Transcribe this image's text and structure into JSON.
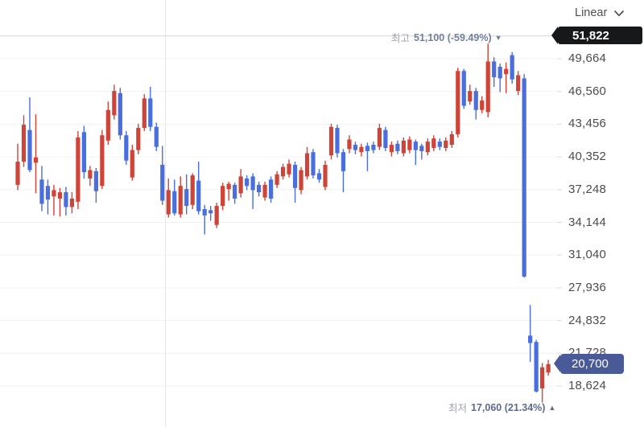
{
  "toolbar": {
    "scale_label": "Linear"
  },
  "y_axis": {
    "high_badge": "51,822",
    "current_badge": "20,700",
    "tick_labels": [
      "49,664",
      "46,560",
      "43,456",
      "40,352",
      "37,248",
      "34,144",
      "31,040",
      "27,936",
      "24,832",
      "21,728",
      "18,624"
    ]
  },
  "annotations": {
    "high": {
      "prefix": "최고",
      "value_text": "51,100 (-59.49%)",
      "arrow": "▼"
    },
    "low": {
      "prefix": "최저",
      "value_text": "17,060 (21.34%)",
      "arrow": "▲"
    }
  },
  "chart_data": {
    "type": "candlestick",
    "up_color": "#cf4439",
    "down_color": "#4a6edb",
    "grid": true,
    "axis_side": "right",
    "y_ticks": [
      49664,
      46560,
      43456,
      40352,
      37248,
      34144,
      31040,
      27936,
      24832,
      21728,
      18624
    ],
    "y_tick_labels": [
      "49,664",
      "46,560",
      "43,456",
      "40,352",
      "37,248",
      "34,144",
      "31,040",
      "27,936",
      "24,832",
      "21,728",
      "18,624"
    ],
    "high_line_price": 51822,
    "last_price": 20700,
    "high_marker": {
      "price": 51100,
      "change_pct": -59.49
    },
    "low_marker": {
      "price": 17060,
      "change_pct": 21.34
    },
    "candles": [
      [
        37700,
        41600,
        37200,
        39900
      ],
      [
        39900,
        44300,
        39400,
        43400
      ],
      [
        42900,
        46000,
        38900,
        39100
      ],
      [
        39800,
        44400,
        36900,
        40300
      ],
      [
        38200,
        39500,
        35200,
        35900
      ],
      [
        37600,
        38200,
        34900,
        36300
      ],
      [
        36600,
        37700,
        34800,
        37200
      ],
      [
        36400,
        37400,
        34700,
        37000
      ],
      [
        37000,
        37500,
        34800,
        35600
      ],
      [
        35600,
        37000,
        35000,
        36400
      ],
      [
        36100,
        42800,
        35400,
        42200
      ],
      [
        42700,
        43300,
        38300,
        38900
      ],
      [
        38300,
        39500,
        37600,
        39100
      ],
      [
        39000,
        39300,
        36000,
        37100
      ],
      [
        37600,
        42900,
        37300,
        42400
      ],
      [
        41900,
        45600,
        41500,
        44800
      ],
      [
        44300,
        47200,
        43900,
        46600
      ],
      [
        46400,
        46900,
        42000,
        42400
      ],
      [
        42400,
        42800,
        39600,
        40000
      ],
      [
        38400,
        41500,
        38100,
        41000
      ],
      [
        41000,
        43500,
        40600,
        43100
      ],
      [
        43100,
        46300,
        42800,
        45900
      ],
      [
        45900,
        47000,
        42800,
        43200
      ],
      [
        43200,
        43600,
        40900,
        41300
      ],
      [
        39600,
        41400,
        35800,
        36200
      ],
      [
        34900,
        38300,
        34600,
        37200
      ],
      [
        37100,
        38200,
        34800,
        35000
      ],
      [
        34900,
        38500,
        34600,
        37600
      ],
      [
        37300,
        38700,
        34900,
        35700
      ],
      [
        35800,
        38800,
        35400,
        38600
      ],
      [
        38100,
        39900,
        34900,
        35200
      ],
      [
        35400,
        35800,
        33000,
        34800
      ],
      [
        35300,
        35700,
        34300,
        35000
      ],
      [
        33900,
        36000,
        33600,
        35700
      ],
      [
        35700,
        37900,
        35300,
        37600
      ],
      [
        37300,
        38000,
        36200,
        37800
      ],
      [
        37700,
        37900,
        35900,
        36400
      ],
      [
        36900,
        39200,
        36500,
        38500
      ],
      [
        38300,
        38600,
        37200,
        37600
      ],
      [
        38500,
        38800,
        35400,
        37200
      ],
      [
        37700,
        38000,
        36600,
        37000
      ],
      [
        36500,
        38000,
        36200,
        37700
      ],
      [
        38200,
        38500,
        36000,
        36400
      ],
      [
        37700,
        39000,
        37400,
        38700
      ],
      [
        38500,
        39700,
        38200,
        39400
      ],
      [
        38700,
        40100,
        38400,
        39700
      ],
      [
        39600,
        39900,
        36000,
        37400
      ],
      [
        37200,
        39400,
        36800,
        39100
      ],
      [
        38500,
        41300,
        38200,
        40700
      ],
      [
        40800,
        41100,
        38300,
        38600
      ],
      [
        38800,
        39200,
        37900,
        38200
      ],
      [
        37500,
        40000,
        37200,
        39600
      ],
      [
        40500,
        43500,
        40100,
        43200
      ],
      [
        43100,
        43400,
        40300,
        40700
      ],
      [
        40800,
        41100,
        37000,
        39000
      ],
      [
        41100,
        42400,
        40700,
        42000
      ],
      [
        41500,
        41800,
        40600,
        41000
      ],
      [
        40800,
        41600,
        40400,
        41300
      ],
      [
        41400,
        41700,
        39000,
        40900
      ],
      [
        41500,
        41800,
        40700,
        41000
      ],
      [
        41300,
        43500,
        41000,
        43100
      ],
      [
        42900,
        43200,
        40900,
        41200
      ],
      [
        40800,
        41800,
        40400,
        41500
      ],
      [
        41600,
        41900,
        40600,
        40900
      ],
      [
        40700,
        42200,
        40400,
        41900
      ],
      [
        41000,
        42300,
        40700,
        42000
      ],
      [
        41800,
        42000,
        39600,
        41000
      ],
      [
        41400,
        41600,
        40100,
        40900
      ],
      [
        40800,
        42100,
        40500,
        41800
      ],
      [
        41200,
        42400,
        40900,
        42100
      ],
      [
        41800,
        42100,
        41000,
        41300
      ],
      [
        41200,
        42200,
        40900,
        41900
      ],
      [
        41500,
        42800,
        41200,
        42500
      ],
      [
        42500,
        48800,
        42200,
        48500
      ],
      [
        48500,
        48700,
        44900,
        45200
      ],
      [
        45600,
        47200,
        45300,
        46600
      ],
      [
        46600,
        46900,
        43900,
        44800
      ],
      [
        44800,
        46100,
        44500,
        45700
      ],
      [
        44600,
        51100,
        44100,
        49400
      ],
      [
        49400,
        49800,
        47000,
        47900
      ],
      [
        48900,
        49200,
        46500,
        47800
      ],
      [
        48200,
        49300,
        46400,
        48700
      ],
      [
        50000,
        50300,
        47300,
        47700
      ],
      [
        46600,
        48500,
        46200,
        48100
      ],
      [
        47800,
        48200,
        28900,
        29000
      ],
      [
        23400,
        26300,
        20900,
        22700
      ],
      [
        22800,
        23000,
        18000,
        18100
      ],
      [
        18400,
        20800,
        17060,
        20400
      ],
      [
        19900,
        21100,
        19600,
        20700
      ]
    ]
  }
}
